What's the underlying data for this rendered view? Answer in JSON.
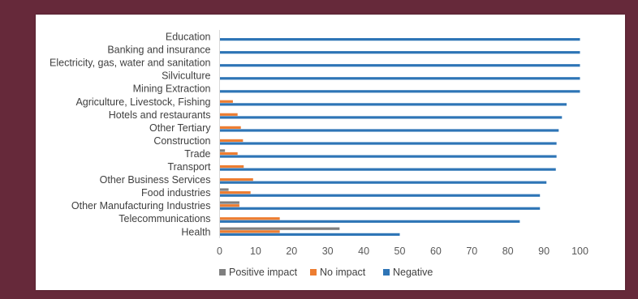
{
  "chart_data": {
    "type": "bar",
    "orientation": "horizontal",
    "categories": [
      "Education",
      "Banking and insurance",
      "Electricity, gas, water and sanitation",
      "Silviculture",
      "Mining Extraction",
      "Agriculture, Livestock, Fishing",
      "Hotels and restaurants",
      "Other Tertiary",
      "Construction",
      "Trade",
      "Transport",
      "Other Business Services",
      "Food industries",
      "Other Manufacturing Industries",
      "Telecommunications",
      "Health"
    ],
    "series": [
      {
        "name": "Positive impact",
        "color": "#7f7f7f",
        "values": [
          0,
          0,
          0,
          0,
          0,
          0,
          0,
          0,
          0,
          1.5,
          0,
          0,
          2.5,
          5.5,
          0,
          33.3
        ]
      },
      {
        "name": "No impact",
        "color": "#ed7d31",
        "values": [
          0,
          0,
          0,
          0,
          0,
          3.7,
          5,
          5.9,
          6.5,
          5,
          6.7,
          9.3,
          8.6,
          5.5,
          16.7,
          16.7
        ]
      },
      {
        "name": "Negative",
        "color": "#2e75b6",
        "values": [
          100,
          100,
          100,
          100,
          100,
          96.3,
          95,
          94.1,
          93.5,
          93.5,
          93.3,
          90.7,
          88.9,
          88.9,
          83.3,
          50
        ]
      }
    ],
    "x_ticks": [
      0,
      10,
      20,
      30,
      40,
      50,
      60,
      70,
      80,
      90,
      100
    ],
    "xlim": [
      0,
      100
    ],
    "grid": false,
    "legend_position": "bottom"
  }
}
